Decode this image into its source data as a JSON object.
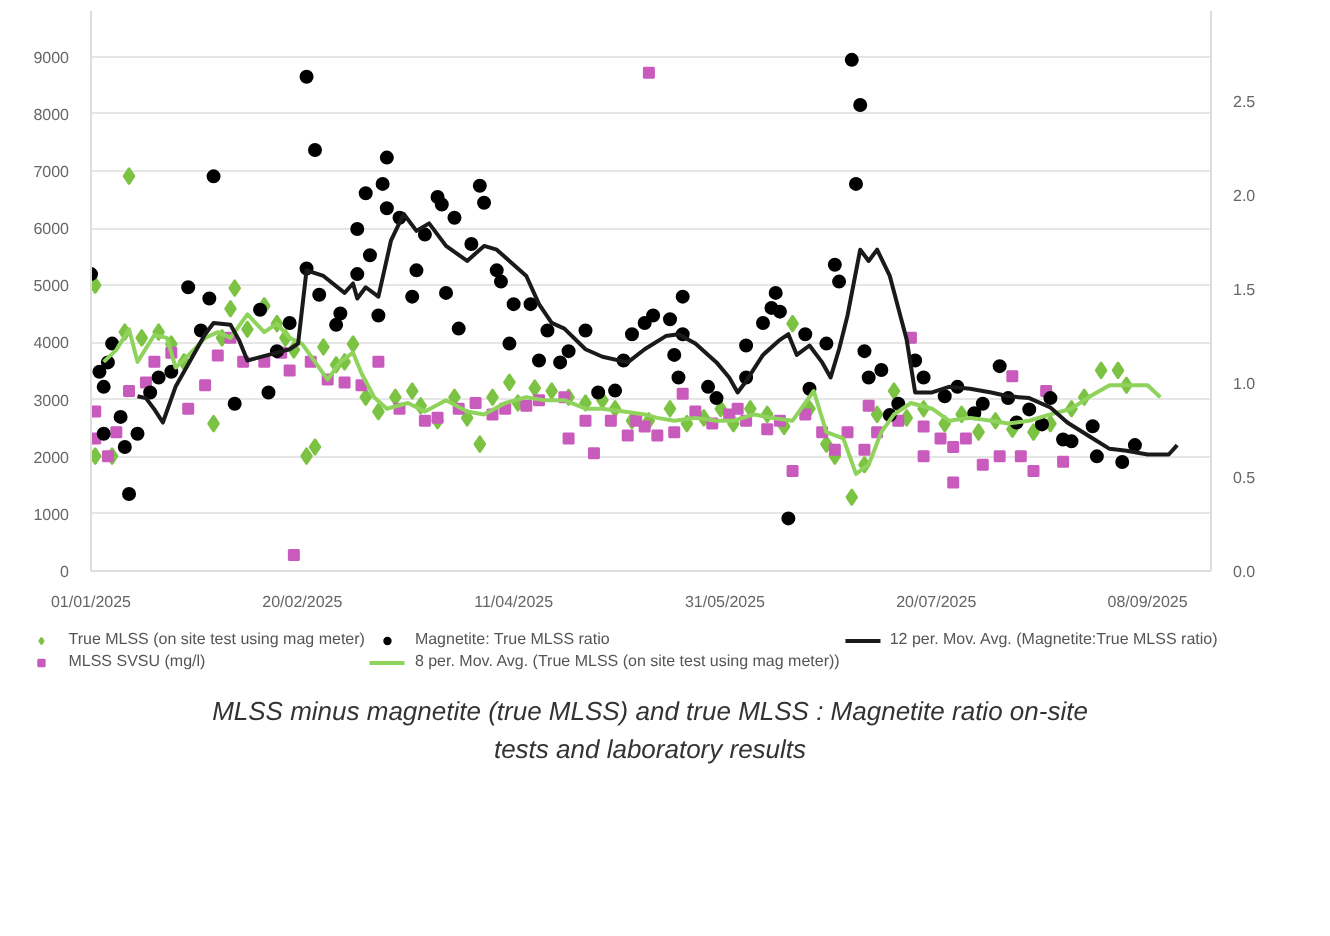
{
  "chart_data": {
    "type": "scatter",
    "annotations": [
      "MLSS minus magnetite (true MLSS) and true MLSS : Magnetite ratio on-site tests and laboratory results"
    ],
    "xlim": [
      "2025-01-01",
      "2025-09-23"
    ],
    "xticks": [
      {
        "value": "2025-01-01",
        "label": "01/01/2025"
      },
      {
        "value": "2025-02-20",
        "label": "20/02/2025"
      },
      {
        "value": "2025-04-11",
        "label": "11/04/2025"
      },
      {
        "value": "2025-05-31",
        "label": "31/05/2025"
      },
      {
        "value": "2025-07-20",
        "label": "20/07/2025"
      },
      {
        "value": "2025-09-08",
        "label": "08/09/2025"
      }
    ],
    "ylim": [
      0,
      9800
    ],
    "yticks": [
      0,
      1000,
      2000,
      3000,
      4000,
      5000,
      6000,
      7000,
      8000,
      9000
    ],
    "y2lim": [
      0,
      2.98
    ],
    "y2ticks": [
      {
        "value": 0,
        "label": "0.0"
      },
      0.5,
      {
        "value": 1,
        "label": "1.0"
      },
      1.5,
      {
        "value": 2,
        "label": "2.0"
      },
      2.5
    ],
    "grid": "y",
    "legend": "bottom",
    "series": [
      {
        "name": "True MLSS (on site test using mag meter)",
        "marker": "diamond",
        "color": "#7cc243",
        "x": [
          "2025-01-02",
          "2025-01-02",
          "2025-01-06",
          "2025-01-10",
          "2025-01-09",
          "2025-01-13",
          "2025-01-17",
          "2025-01-20",
          "2025-01-23",
          "2025-01-30",
          "2025-02-01",
          "2025-02-03",
          "2025-02-04",
          "2025-02-07",
          "2025-02-11",
          "2025-02-14",
          "2025-02-16",
          "2025-02-18",
          "2025-02-21",
          "2025-02-23",
          "2025-02-25",
          "2025-02-28",
          "2025-03-02",
          "2025-03-04",
          "2025-03-07",
          "2025-03-10",
          "2025-03-14",
          "2025-03-18",
          "2025-03-20",
          "2025-03-24",
          "2025-03-28",
          "2025-03-31",
          "2025-04-03",
          "2025-04-06",
          "2025-04-10",
          "2025-04-12",
          "2025-04-16",
          "2025-04-20",
          "2025-04-24",
          "2025-04-28",
          "2025-05-02",
          "2025-05-05",
          "2025-05-09",
          "2025-05-13",
          "2025-05-18",
          "2025-05-22",
          "2025-05-26",
          "2025-05-30",
          "2025-06-02",
          "2025-06-06",
          "2025-06-10",
          "2025-06-14",
          "2025-06-16",
          "2025-06-20",
          "2025-06-24",
          "2025-06-26",
          "2025-06-30",
          "2025-07-03",
          "2025-07-06",
          "2025-07-10",
          "2025-07-13",
          "2025-07-17",
          "2025-07-22",
          "2025-07-26",
          "2025-07-30",
          "2025-08-03",
          "2025-08-07",
          "2025-08-12",
          "2025-08-16",
          "2025-08-21",
          "2025-08-24",
          "2025-08-28",
          "2025-09-01",
          "2025-09-03"
        ],
        "values": [
          5000,
          2010,
          2010,
          6910,
          4180,
          4080,
          4180,
          3970,
          3660,
          2580,
          4080,
          4590,
          4950,
          4230,
          4640,
          4330,
          4080,
          3870,
          2010,
          2170,
          3920,
          3610,
          3660,
          3970,
          3040,
          2790,
          3040,
          3150,
          2890,
          2630,
          3040,
          2680,
          2220,
          3040,
          3300,
          2940,
          3200,
          3150,
          3040,
          2940,
          2990,
          2840,
          2630,
          2630,
          2840,
          2580,
          2680,
          2840,
          2580,
          2840,
          2740,
          2530,
          4330,
          2840,
          2220,
          2010,
          1290,
          1860,
          2740,
          3150,
          2680,
          2840,
          2580,
          2740,
          2430,
          2630,
          2480,
          2430,
          2580,
          2840,
          3040,
          3510,
          3510,
          3250
        ]
      },
      {
        "name": "MLSS SVSU (mg/l)",
        "marker": "square",
        "color": "#c95bbd",
        "x": [
          "2025-01-02",
          "2025-01-02",
          "2025-01-05",
          "2025-01-07",
          "2025-01-10",
          "2025-01-14",
          "2025-01-16",
          "2025-01-20",
          "2025-01-24",
          "2025-01-28",
          "2025-01-31",
          "2025-02-03",
          "2025-02-06",
          "2025-02-11",
          "2025-02-15",
          "2025-02-17",
          "2025-02-18",
          "2025-02-22",
          "2025-02-26",
          "2025-03-02",
          "2025-03-06",
          "2025-03-10",
          "2025-03-15",
          "2025-03-21",
          "2025-03-24",
          "2025-03-29",
          "2025-04-02",
          "2025-04-06",
          "2025-04-09",
          "2025-04-14",
          "2025-04-17",
          "2025-04-23",
          "2025-04-24",
          "2025-04-28",
          "2025-04-30",
          "2025-05-04",
          "2025-05-08",
          "2025-05-10",
          "2025-05-12",
          "2025-05-13",
          "2025-05-15",
          "2025-05-19",
          "2025-05-21",
          "2025-05-24",
          "2025-05-28",
          "2025-06-01",
          "2025-06-03",
          "2025-06-05",
          "2025-06-10",
          "2025-06-13",
          "2025-06-16",
          "2025-06-19",
          "2025-06-23",
          "2025-06-26",
          "2025-06-29",
          "2025-07-03",
          "2025-07-04",
          "2025-07-06",
          "2025-07-11",
          "2025-07-14",
          "2025-07-17",
          "2025-07-17",
          "2025-07-21",
          "2025-07-24",
          "2025-07-24",
          "2025-07-27",
          "2025-07-31",
          "2025-08-04",
          "2025-08-07",
          "2025-08-09",
          "2025-08-12",
          "2025-08-15",
          "2025-08-19"
        ],
        "values": [
          2320,
          2790,
          2010,
          2430,
          3150,
          3300,
          3660,
          3820,
          2840,
          3250,
          3770,
          4080,
          3660,
          3660,
          3820,
          3510,
          280,
          3660,
          3350,
          3300,
          3250,
          3660,
          2840,
          2630,
          2680,
          2840,
          2940,
          2740,
          2840,
          2890,
          2990,
          3040,
          2320,
          2630,
          2060,
          2630,
          2370,
          2630,
          2530,
          8720,
          2370,
          2430,
          3100,
          2790,
          2580,
          2740,
          2840,
          2630,
          2480,
          2630,
          1750,
          2740,
          2430,
          2120,
          2430,
          2120,
          2890,
          2430,
          2630,
          4080,
          2530,
          2010,
          2320,
          2170,
          1550,
          2320,
          1860,
          2010,
          3410,
          2010,
          1750,
          3150,
          1910
        ]
      },
      {
        "name": "Magnetite: True MLSS ratio",
        "axis": "y2",
        "marker": "circle",
        "color": "#000000",
        "x": [
          "2025-01-01",
          "2025-01-03",
          "2025-01-04",
          "2025-01-05",
          "2025-01-06",
          "2025-01-04",
          "2025-01-08",
          "2025-01-09",
          "2025-01-10",
          "2025-01-12",
          "2025-01-15",
          "2025-01-17",
          "2025-01-20",
          "2025-01-24",
          "2025-01-27",
          "2025-01-29",
          "2025-01-30",
          "2025-02-04",
          "2025-02-10",
          "2025-02-12",
          "2025-02-14",
          "2025-02-17",
          "2025-02-21",
          "2025-02-21",
          "2025-02-23",
          "2025-02-24",
          "2025-02-28",
          "2025-03-01",
          "2025-03-05",
          "2025-03-05",
          "2025-03-07",
          "2025-03-08",
          "2025-03-10",
          "2025-03-11",
          "2025-03-12",
          "2025-03-12",
          "2025-03-15",
          "2025-03-18",
          "2025-03-19",
          "2025-03-21",
          "2025-03-24",
          "2025-03-25",
          "2025-03-26",
          "2025-03-28",
          "2025-03-29",
          "2025-04-01",
          "2025-04-03",
          "2025-04-04",
          "2025-04-07",
          "2025-04-08",
          "2025-04-10",
          "2025-04-11",
          "2025-04-15",
          "2025-04-17",
          "2025-04-19",
          "2025-04-22",
          "2025-04-24",
          "2025-04-28",
          "2025-05-01",
          "2025-05-05",
          "2025-05-07",
          "2025-05-09",
          "2025-05-12",
          "2025-05-14",
          "2025-05-18",
          "2025-05-19",
          "2025-05-20",
          "2025-05-21",
          "2025-05-21",
          "2025-05-27",
          "2025-05-29",
          "2025-06-05",
          "2025-06-05",
          "2025-06-09",
          "2025-06-11",
          "2025-06-12",
          "2025-06-13",
          "2025-06-15",
          "2025-06-19",
          "2025-06-20",
          "2025-06-24",
          "2025-06-26",
          "2025-06-27",
          "2025-06-30",
          "2025-07-01",
          "2025-07-02",
          "2025-07-03",
          "2025-07-04",
          "2025-07-07",
          "2025-07-09",
          "2025-07-11",
          "2025-07-15",
          "2025-07-17",
          "2025-07-22",
          "2025-07-25",
          "2025-07-29",
          "2025-07-31",
          "2025-08-04",
          "2025-08-06",
          "2025-08-08",
          "2025-08-11",
          "2025-08-14",
          "2025-08-16",
          "2025-08-19",
          "2025-08-21",
          "2025-08-26",
          "2025-08-27",
          "2025-09-02",
          "2025-09-05"
        ],
        "values": [
          1.58,
          1.06,
          0.98,
          1.11,
          1.21,
          0.73,
          0.82,
          0.66,
          0.41,
          0.73,
          0.95,
          1.03,
          1.06,
          1.51,
          1.28,
          1.45,
          2.1,
          0.89,
          1.39,
          0.95,
          1.17,
          1.32,
          2.63,
          1.61,
          2.24,
          1.47,
          1.31,
          1.37,
          1.58,
          1.82,
          2.01,
          1.68,
          1.36,
          2.06,
          2.2,
          1.93,
          1.88,
          1.46,
          1.6,
          1.79,
          1.99,
          1.95,
          1.48,
          1.88,
          1.29,
          1.74,
          2.05,
          1.96,
          1.6,
          1.54,
          1.21,
          1.42,
          1.42,
          1.12,
          1.28,
          1.11,
          1.17,
          1.28,
          0.95,
          0.96,
          1.12,
          1.26,
          1.32,
          1.36,
          1.34,
          1.15,
          1.03,
          1.26,
          1.46,
          0.98,
          0.92,
          1.2,
          1.03,
          1.32,
          1.4,
          1.48,
          1.38,
          0.28,
          1.26,
          0.97,
          1.21,
          1.63,
          1.54,
          2.72,
          2.06,
          2.48,
          1.17,
          1.03,
          1.07,
          0.83,
          0.89,
          1.12,
          1.03,
          0.93,
          0.98,
          0.84,
          0.89,
          1.09,
          0.92,
          0.79,
          0.86,
          0.78,
          0.92,
          0.7,
          0.69,
          0.77,
          0.61,
          0.58,
          0.67
        ]
      },
      {
        "name": "8 per. Mov. Avg. (True MLSS (on site test using mag meter))",
        "type": "line",
        "color": "#8fd35c",
        "x": [
          "2025-01-04",
          "2025-01-07",
          "2025-01-10",
          "2025-01-12",
          "2025-01-16",
          "2025-01-19",
          "2025-01-21",
          "2025-01-24",
          "2025-01-28",
          "2025-01-31",
          "2025-02-03",
          "2025-02-07",
          "2025-02-11",
          "2025-02-14",
          "2025-02-17",
          "2025-02-20",
          "2025-02-23",
          "2025-02-26",
          "2025-03-01",
          "2025-03-04",
          "2025-03-06",
          "2025-03-09",
          "2025-03-12",
          "2025-03-17",
          "2025-03-21",
          "2025-03-26",
          "2025-03-31",
          "2025-04-04",
          "2025-04-09",
          "2025-04-14",
          "2025-04-18",
          "2025-04-23",
          "2025-04-28",
          "2025-05-02",
          "2025-05-07",
          "2025-05-12",
          "2025-05-15",
          "2025-05-19",
          "2025-05-24",
          "2025-05-29",
          "2025-06-02",
          "2025-06-07",
          "2025-06-11",
          "2025-06-16",
          "2025-06-21",
          "2025-06-24",
          "2025-06-28",
          "2025-07-01",
          "2025-07-04",
          "2025-07-07",
          "2025-07-10",
          "2025-07-14",
          "2025-07-19",
          "2025-07-23",
          "2025-07-28",
          "2025-08-02",
          "2025-08-06",
          "2025-08-11",
          "2025-08-16",
          "2025-08-21",
          "2025-08-25",
          "2025-08-30",
          "2025-09-03",
          "2025-09-08",
          "2025-09-11"
        ],
        "values": [
          3660,
          3870,
          4230,
          3660,
          4130,
          4080,
          3560,
          3770,
          4080,
          4180,
          4080,
          4490,
          4180,
          4330,
          4080,
          3970,
          3660,
          3350,
          3660,
          3820,
          3460,
          3040,
          2840,
          2940,
          2790,
          2990,
          2790,
          2740,
          2940,
          3040,
          2990,
          2990,
          2840,
          2840,
          2790,
          2740,
          2680,
          2630,
          2680,
          2630,
          2630,
          2740,
          2680,
          2630,
          3150,
          2430,
          2320,
          1700,
          1860,
          2430,
          2740,
          2940,
          2840,
          2630,
          2680,
          2630,
          2580,
          2630,
          2740,
          2840,
          3040,
          3250,
          3250,
          3250,
          3040
        ]
      },
      {
        "name": "12 per. Mov. Avg. (Magnetite:True MLSS ratio)",
        "type": "line",
        "axis": "y2",
        "color": "#1a1a1a",
        "x": [
          "2025-01-12",
          "2025-01-14",
          "2025-01-16",
          "2025-01-18",
          "2025-01-21",
          "2025-01-25",
          "2025-01-28",
          "2025-01-30",
          "2025-02-03",
          "2025-02-05",
          "2025-02-07",
          "2025-02-12",
          "2025-02-17",
          "2025-02-19",
          "2025-02-21",
          "2025-02-25",
          "2025-03-02",
          "2025-03-04",
          "2025-03-05",
          "2025-03-07",
          "2025-03-10",
          "2025-03-13",
          "2025-03-16",
          "2025-03-19",
          "2025-03-22",
          "2025-03-26",
          "2025-03-31",
          "2025-04-04",
          "2025-04-07",
          "2025-04-10",
          "2025-04-14",
          "2025-04-17",
          "2025-04-20",
          "2025-04-23",
          "2025-04-28",
          "2025-05-02",
          "2025-05-08",
          "2025-05-12",
          "2025-05-17",
          "2025-05-20",
          "2025-05-24",
          "2025-05-29",
          "2025-06-01",
          "2025-06-03",
          "2025-06-05",
          "2025-06-09",
          "2025-06-13",
          "2025-06-15",
          "2025-06-17",
          "2025-06-20",
          "2025-06-23",
          "2025-06-25",
          "2025-06-27",
          "2025-06-29",
          "2025-07-02",
          "2025-07-04",
          "2025-07-06",
          "2025-07-09",
          "2025-07-13",
          "2025-07-15",
          "2025-07-19",
          "2025-07-23",
          "2025-07-28",
          "2025-08-02",
          "2025-08-06",
          "2025-08-11",
          "2025-08-16",
          "2025-08-20",
          "2025-08-25",
          "2025-08-30",
          "2025-09-03",
          "2025-09-08",
          "2025-09-13",
          "2025-09-15"
        ],
        "values": [
          0.93,
          0.92,
          0.86,
          0.79,
          0.98,
          1.14,
          1.26,
          1.32,
          1.31,
          1.23,
          1.12,
          1.15,
          1.18,
          1.21,
          1.6,
          1.57,
          1.48,
          1.53,
          1.45,
          1.51,
          1.46,
          1.76,
          1.9,
          1.81,
          1.85,
          1.73,
          1.65,
          1.73,
          1.71,
          1.65,
          1.57,
          1.42,
          1.32,
          1.29,
          1.18,
          1.14,
          1.11,
          1.18,
          1.25,
          1.26,
          1.21,
          1.11,
          1.03,
          0.95,
          1.01,
          1.15,
          1.23,
          1.26,
          1.15,
          1.2,
          1.11,
          1.03,
          1.18,
          1.36,
          1.71,
          1.65,
          1.71,
          1.57,
          1.23,
          0.95,
          0.95,
          0.98,
          0.97,
          0.95,
          0.93,
          0.92,
          0.87,
          0.79,
          0.72,
          0.65,
          0.64,
          0.62,
          0.62,
          0.67
        ]
      }
    ]
  }
}
